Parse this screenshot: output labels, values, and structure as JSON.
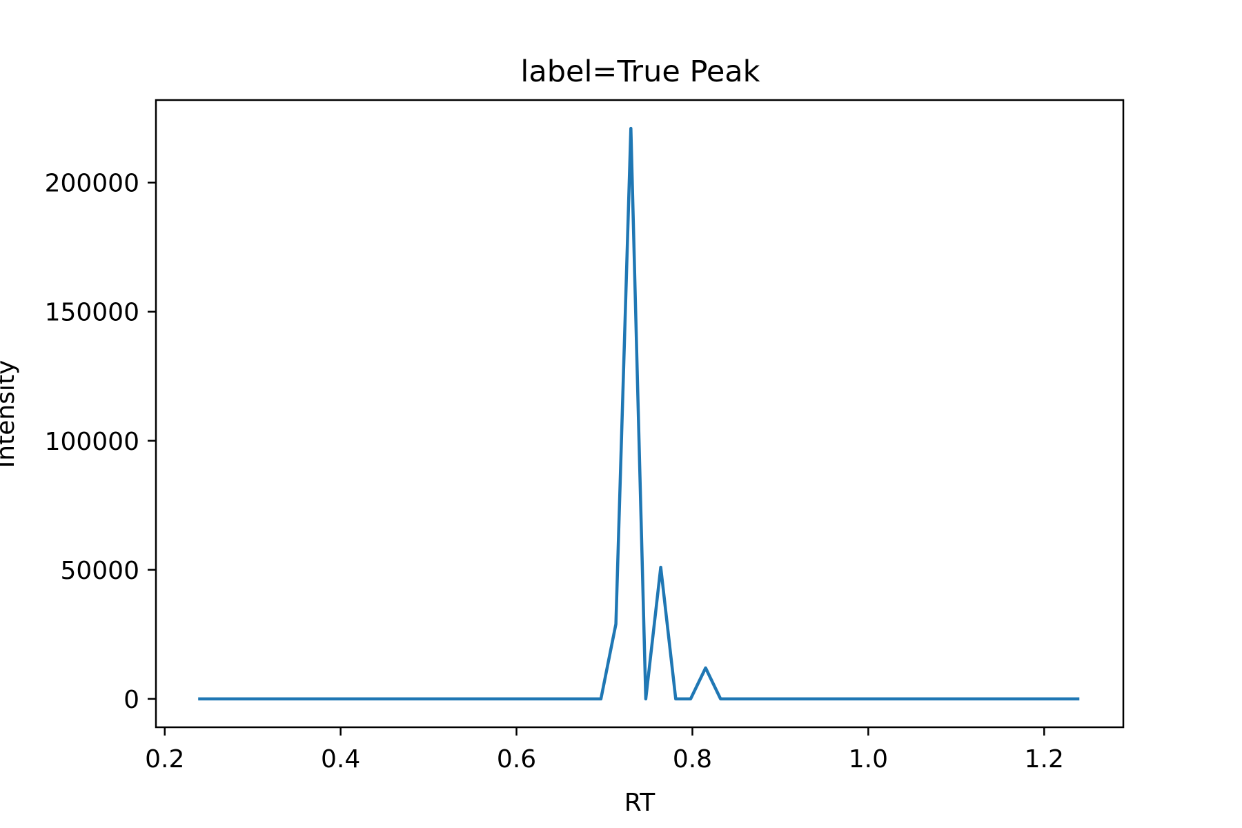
{
  "chart_data": {
    "type": "line",
    "title": "label=True Peak",
    "xlabel": "RT",
    "ylabel": "Intensity",
    "xlim": [
      0.19,
      1.29
    ],
    "ylim": [
      -11000,
      232000
    ],
    "xticks": [
      0.2,
      0.4,
      0.6,
      0.8,
      1.0,
      1.2
    ],
    "xtick_labels": [
      "0.2",
      "0.4",
      "0.6",
      "0.8",
      "1.0",
      "1.2"
    ],
    "yticks": [
      0,
      50000,
      100000,
      150000,
      200000
    ],
    "ytick_labels": [
      "0",
      "50000",
      "100000",
      "150000",
      "200000"
    ],
    "grid": false,
    "series": [
      {
        "color": "#1f77b4",
        "x": [
          0.238,
          0.696,
          0.713,
          0.73,
          0.747,
          0.764,
          0.781,
          0.798,
          0.815,
          0.832,
          1.24
        ],
        "y": [
          0,
          0,
          29000,
          221000,
          0,
          51000,
          0,
          0,
          12000,
          0,
          0
        ]
      }
    ]
  }
}
